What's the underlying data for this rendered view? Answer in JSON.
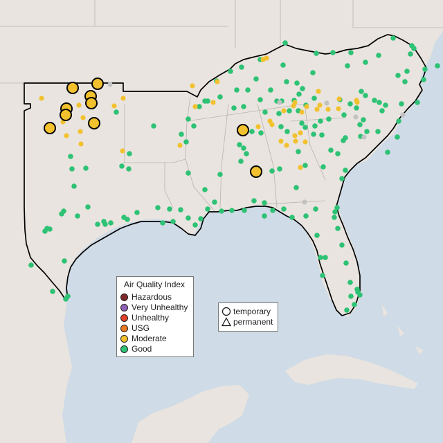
{
  "aqi_legend": {
    "title": "Air Quality Index",
    "items": [
      {
        "label": "Hazardous",
        "color": "#7e2a2a"
      },
      {
        "label": "Very Unhealthy",
        "color": "#8f5fb6"
      },
      {
        "label": "Unhealthy",
        "color": "#e0412c"
      },
      {
        "label": "USG",
        "color": "#e87a22"
      },
      {
        "label": "Moderate",
        "color": "#f2c12e"
      },
      {
        "label": "Good",
        "color": "#2ec275"
      }
    ]
  },
  "site_legend": {
    "items": [
      {
        "label": "temporary",
        "shape": "circle-icon"
      },
      {
        "label": "permanent",
        "shape": "triangle-icon"
      }
    ]
  },
  "colors": {
    "water": "#cfdbe6",
    "land": "#e9e4df",
    "border": "#b9b3ad",
    "highlight_outline": "#000000",
    "no_data": "#c2c2c2"
  }
}
